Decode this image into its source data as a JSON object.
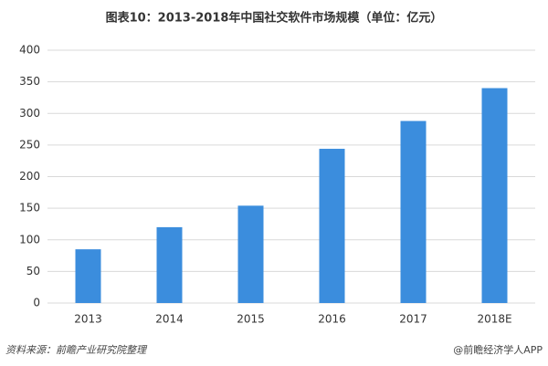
{
  "chart_data": {
    "type": "bar",
    "title": "图表10：2013-2018年中国社交软件市场规模（单位：亿元）",
    "categories": [
      "2013",
      "2014",
      "2015",
      "2016",
      "2017",
      "2018E"
    ],
    "values": [
      85,
      120,
      154,
      244,
      288,
      340
    ],
    "color": "#3b8ddd",
    "ylim": [
      0,
      400
    ],
    "yticks": [
      0,
      50,
      100,
      150,
      200,
      250,
      300,
      350,
      400
    ],
    "grid": true,
    "source": "资料来源：前瞻产业研究院整理",
    "credit": "@前瞻经济学人APP"
  }
}
